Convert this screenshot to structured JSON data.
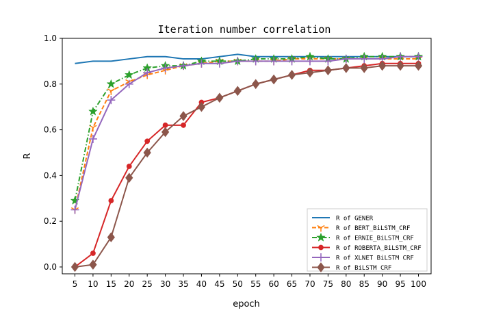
{
  "chart_data": {
    "type": "line",
    "title": "Iteration number correlation",
    "xlabel": "epoch",
    "ylabel": "R",
    "x": [
      5,
      10,
      15,
      20,
      25,
      30,
      35,
      40,
      45,
      50,
      55,
      60,
      65,
      70,
      75,
      80,
      85,
      90,
      95,
      100
    ],
    "ylim": [
      -0.03,
      1.0
    ],
    "yticks": [
      0.0,
      0.2,
      0.4,
      0.6,
      0.8,
      1.0
    ],
    "ytick_labels": [
      "0.0",
      "0.2",
      "0.4",
      "0.6",
      "0.8",
      "1.0"
    ],
    "grid": false,
    "legend_position": "lower-right",
    "series": [
      {
        "name": "R of GENER",
        "color": "#1f77b4",
        "linestyle": "solid",
        "marker": "none",
        "values": [
          0.89,
          0.9,
          0.9,
          0.91,
          0.92,
          0.92,
          0.91,
          0.91,
          0.92,
          0.93,
          0.92,
          0.92,
          0.92,
          0.92,
          0.92,
          0.92,
          0.92,
          0.92,
          0.92,
          0.92
        ]
      },
      {
        "name": "R of BERT_BiLSTM_CRF",
        "color": "#ff7f0e",
        "linestyle": "dashed",
        "marker": "tri_down",
        "values": [
          0.25,
          0.61,
          0.77,
          0.81,
          0.84,
          0.86,
          0.88,
          0.89,
          0.9,
          0.9,
          0.9,
          0.9,
          0.91,
          0.91,
          0.91,
          0.91,
          0.91,
          0.91,
          0.91,
          0.91
        ]
      },
      {
        "name": "R of ERNIE_BiLSTM_CRF",
        "color": "#2ca02c",
        "linestyle": "dashdot",
        "marker": "star",
        "values": [
          0.29,
          0.68,
          0.8,
          0.84,
          0.87,
          0.88,
          0.88,
          0.9,
          0.9,
          0.9,
          0.91,
          0.91,
          0.91,
          0.92,
          0.91,
          0.91,
          0.92,
          0.92,
          0.92,
          0.92
        ]
      },
      {
        "name": "R of ROBERTA_BiLSTM_CRF",
        "color": "#d62728",
        "linestyle": "solid",
        "marker": "circle",
        "values": [
          0.0,
          0.06,
          0.29,
          0.44,
          0.55,
          0.62,
          0.62,
          0.72,
          0.74,
          0.77,
          0.8,
          0.82,
          0.84,
          0.86,
          0.86,
          0.87,
          0.88,
          0.89,
          0.89,
          0.89
        ]
      },
      {
        "name": "R of XLNET BiLSTM CRF",
        "color": "#9467bd",
        "linestyle": "solid",
        "marker": "plus",
        "values": [
          0.25,
          0.56,
          0.73,
          0.8,
          0.85,
          0.87,
          0.88,
          0.89,
          0.89,
          0.9,
          0.9,
          0.9,
          0.9,
          0.9,
          0.9,
          0.91,
          0.91,
          0.91,
          0.92,
          0.92
        ]
      },
      {
        "name": "R of BiLSTM CRF",
        "color": "#8c564b",
        "linestyle": "solid",
        "marker": "diamond",
        "values": [
          0.0,
          0.01,
          0.13,
          0.39,
          0.5,
          0.59,
          0.66,
          0.7,
          0.74,
          0.77,
          0.8,
          0.82,
          0.84,
          0.85,
          0.86,
          0.87,
          0.87,
          0.88,
          0.88,
          0.88
        ]
      }
    ]
  }
}
